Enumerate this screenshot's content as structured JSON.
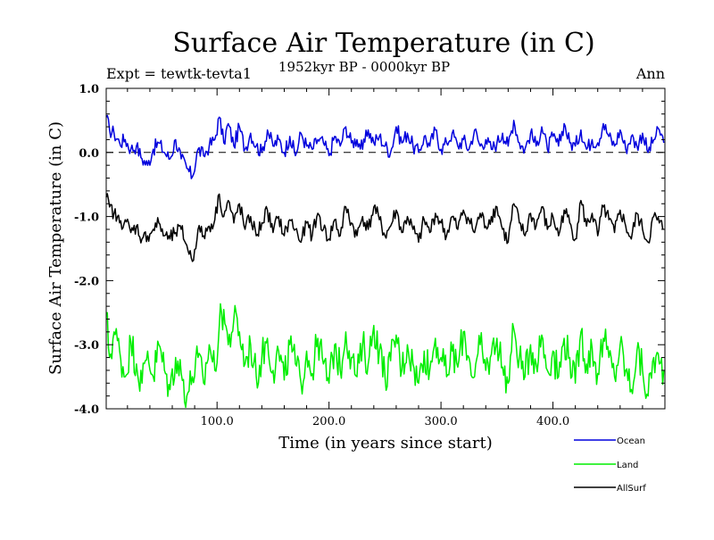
{
  "title": "Surface Air Temperature (in C)",
  "subtitle": "1952kyr BP - 0000kyr BP",
  "experiment": "Expt = tewtk-tevta1",
  "season": "Ann",
  "chart_data": {
    "type": "line",
    "title": "Surface Air Temperature (in C)",
    "xlabel": "Time (in years since start)",
    "ylabel": "Surface Air Temperature (in C)",
    "xlim": [
      1,
      500
    ],
    "ylim": [
      -4.0,
      1.0
    ],
    "x_ticks": [
      100,
      200,
      300,
      400
    ],
    "x_tick_labels": [
      "100.0",
      "200.0",
      "300.0",
      "400.0"
    ],
    "y_ticks": [
      1.0,
      0.0,
      -1.0,
      -2.0,
      -3.0,
      -4.0
    ],
    "y_tick_labels": [
      "1.0",
      "0.0",
      "-1.0",
      "-2.0",
      "-3.0",
      "-4.0"
    ],
    "reference_line": {
      "y": 0.0,
      "style": "dashed"
    },
    "series": [
      {
        "name": "Ocean",
        "color": "#0000dd",
        "x": [
          1,
          4,
          8,
          13,
          18,
          23,
          28,
          33,
          38,
          43,
          48,
          53,
          58,
          63,
          68,
          73,
          78,
          83,
          88,
          93,
          98,
          102,
          106,
          110,
          115,
          120,
          125,
          130,
          135,
          140,
          145,
          150,
          155,
          160,
          165,
          170,
          175,
          180,
          185,
          190,
          195,
          200,
          205,
          210,
          215,
          220,
          225,
          230,
          235,
          240,
          245,
          250,
          255,
          260,
          265,
          270,
          275,
          280,
          285,
          290,
          295,
          300,
          305,
          310,
          315,
          320,
          325,
          330,
          335,
          340,
          345,
          350,
          355,
          360,
          365,
          370,
          375,
          380,
          385,
          390,
          395,
          400,
          405,
          410,
          415,
          420,
          425,
          430,
          435,
          440,
          445,
          450,
          455,
          460,
          465,
          470,
          475,
          480,
          485,
          490,
          495,
          499
        ],
        "values": [
          0.55,
          0.35,
          0.3,
          0.15,
          0.2,
          0.05,
          0.1,
          -0.1,
          -0.2,
          0.05,
          0.15,
          0.0,
          -0.1,
          0.2,
          -0.1,
          -0.25,
          -0.38,
          0.05,
          -0.05,
          0.1,
          0.2,
          0.55,
          0.15,
          0.45,
          0.1,
          0.4,
          0.05,
          0.3,
          0.1,
          0.0,
          0.35,
          0.1,
          0.2,
          0.0,
          0.25,
          -0.05,
          0.3,
          0.1,
          0.05,
          0.2,
          0.15,
          -0.05,
          0.25,
          0.1,
          0.4,
          0.15,
          0.2,
          0.05,
          0.35,
          0.15,
          0.25,
          0.1,
          0.0,
          0.4,
          0.15,
          0.3,
          0.1,
          0.0,
          0.25,
          0.1,
          0.35,
          0.05,
          0.15,
          0.3,
          0.1,
          0.2,
          0.05,
          0.35,
          0.1,
          0.2,
          0.05,
          0.15,
          0.3,
          0.1,
          0.5,
          0.15,
          0.05,
          0.3,
          0.1,
          0.4,
          0.05,
          0.25,
          0.1,
          0.45,
          0.15,
          0.1,
          0.35,
          0.05,
          0.2,
          0.15,
          0.45,
          0.25,
          0.1,
          0.35,
          0.05,
          0.25,
          0.1,
          0.3,
          0.0,
          0.2,
          0.35,
          0.15
        ]
      },
      {
        "name": "Land",
        "color": "#00ee00",
        "x": [
          1,
          4,
          8,
          13,
          18,
          23,
          28,
          33,
          38,
          43,
          48,
          53,
          58,
          63,
          68,
          73,
          78,
          83,
          88,
          93,
          98,
          102,
          106,
          110,
          115,
          120,
          125,
          130,
          135,
          140,
          145,
          150,
          155,
          160,
          165,
          170,
          175,
          180,
          185,
          190,
          195,
          200,
          205,
          210,
          215,
          220,
          225,
          230,
          235,
          240,
          245,
          250,
          255,
          260,
          265,
          270,
          275,
          280,
          285,
          290,
          295,
          300,
          305,
          310,
          315,
          320,
          325,
          330,
          335,
          340,
          345,
          350,
          355,
          360,
          365,
          370,
          375,
          380,
          385,
          390,
          395,
          400,
          405,
          410,
          415,
          420,
          425,
          430,
          435,
          440,
          445,
          450,
          455,
          460,
          465,
          470,
          475,
          480,
          485,
          490,
          495,
          499
        ],
        "values": [
          -2.5,
          -3.2,
          -2.8,
          -3.1,
          -3.5,
          -2.95,
          -3.3,
          -3.6,
          -3.1,
          -3.5,
          -3.0,
          -3.4,
          -3.7,
          -3.2,
          -3.45,
          -3.8,
          -3.5,
          -3.2,
          -3.6,
          -3.0,
          -3.4,
          -2.7,
          -2.45,
          -3.0,
          -2.6,
          -2.8,
          -3.3,
          -3.0,
          -3.5,
          -3.2,
          -2.9,
          -3.4,
          -3.1,
          -3.55,
          -3.0,
          -3.3,
          -3.6,
          -3.1,
          -3.45,
          -2.9,
          -3.3,
          -3.6,
          -3.0,
          -3.4,
          -2.8,
          -3.2,
          -3.5,
          -3.0,
          -3.3,
          -2.7,
          -3.1,
          -3.5,
          -3.25,
          -2.85,
          -3.4,
          -3.0,
          -3.3,
          -3.6,
          -3.1,
          -3.4,
          -2.9,
          -3.2,
          -3.5,
          -3.1,
          -3.35,
          -2.8,
          -3.2,
          -3.5,
          -3.0,
          -3.4,
          -3.15,
          -2.9,
          -3.35,
          -3.6,
          -2.75,
          -3.2,
          -3.5,
          -3.0,
          -3.3,
          -2.85,
          -3.4,
          -3.1,
          -3.5,
          -2.9,
          -3.2,
          -3.6,
          -2.8,
          -3.3,
          -3.05,
          -3.45,
          -2.9,
          -3.2,
          -3.5,
          -3.0,
          -3.4,
          -3.7,
          -3.1,
          -3.4,
          -3.8,
          -3.2,
          -3.3,
          -3.4
        ]
      },
      {
        "name": "AllSurf",
        "color": "#000000",
        "x": [
          1,
          4,
          8,
          13,
          18,
          23,
          28,
          33,
          38,
          43,
          48,
          53,
          58,
          63,
          68,
          73,
          78,
          83,
          88,
          93,
          98,
          102,
          106,
          110,
          115,
          120,
          125,
          130,
          135,
          140,
          145,
          150,
          155,
          160,
          165,
          170,
          175,
          180,
          185,
          190,
          195,
          200,
          205,
          210,
          215,
          220,
          225,
          230,
          235,
          240,
          245,
          250,
          255,
          260,
          265,
          270,
          275,
          280,
          285,
          290,
          295,
          300,
          305,
          310,
          315,
          320,
          325,
          330,
          335,
          340,
          345,
          350,
          355,
          360,
          365,
          370,
          375,
          380,
          385,
          390,
          395,
          400,
          405,
          410,
          415,
          420,
          425,
          430,
          435,
          440,
          445,
          450,
          455,
          460,
          465,
          470,
          475,
          480,
          485,
          490,
          495,
          499
        ],
        "values": [
          -0.7,
          -0.85,
          -0.95,
          -1.1,
          -1.05,
          -1.25,
          -1.15,
          -1.35,
          -1.3,
          -1.2,
          -1.1,
          -1.3,
          -1.35,
          -1.25,
          -1.2,
          -1.45,
          -1.7,
          -1.2,
          -1.3,
          -1.15,
          -1.05,
          -0.65,
          -1.0,
          -0.75,
          -1.1,
          -0.8,
          -1.2,
          -1.0,
          -1.3,
          -1.1,
          -0.9,
          -1.25,
          -1.0,
          -1.3,
          -1.05,
          -1.2,
          -1.4,
          -1.1,
          -1.3,
          -0.95,
          -1.2,
          -1.35,
          -1.05,
          -1.3,
          -0.85,
          -1.1,
          -1.3,
          -1.0,
          -1.2,
          -0.85,
          -1.05,
          -1.3,
          -1.15,
          -0.9,
          -1.25,
          -1.0,
          -1.2,
          -1.4,
          -1.05,
          -1.25,
          -0.95,
          -1.1,
          -1.3,
          -1.0,
          -1.2,
          -0.9,
          -1.05,
          -1.25,
          -0.95,
          -1.15,
          -1.0,
          -0.85,
          -1.2,
          -1.4,
          -0.8,
          -1.1,
          -1.3,
          -0.95,
          -1.15,
          -0.85,
          -1.2,
          -1.0,
          -1.3,
          -0.9,
          -1.1,
          -1.35,
          -0.75,
          -1.15,
          -0.95,
          -1.3,
          -0.85,
          -1.05,
          -1.25,
          -0.9,
          -1.15,
          -1.35,
          -0.95,
          -1.2,
          -1.4,
          -1.0,
          -1.1,
          -1.2
        ]
      }
    ],
    "legend": {
      "position": "bottom-right",
      "entries": [
        "Ocean",
        "Land",
        "AllSurf"
      ]
    },
    "grid": false
  }
}
